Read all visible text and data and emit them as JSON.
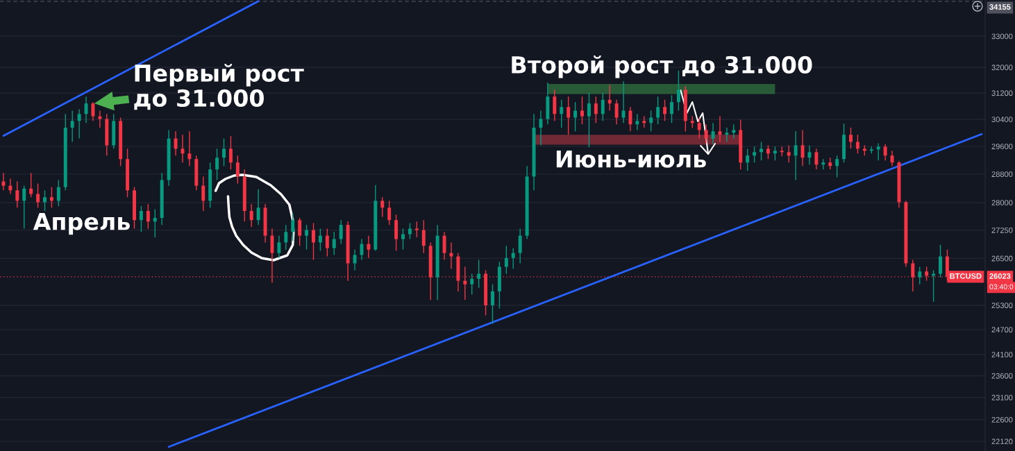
{
  "chart_data": {
    "type": "candlestick",
    "categories": [
      null,
      null,
      null,
      null,
      null,
      null,
      null,
      null,
      null,
      null,
      null,
      null,
      null,
      null,
      null,
      null,
      null,
      null,
      null,
      null,
      null,
      null,
      null,
      null,
      null,
      null,
      null,
      null,
      null,
      null,
      null,
      null,
      null,
      null,
      null,
      null,
      null,
      null,
      null,
      null,
      null,
      null,
      null,
      null,
      null,
      null,
      null,
      null,
      null,
      null,
      null,
      null,
      null,
      null,
      null,
      null,
      null,
      null,
      null,
      null,
      null,
      null,
      null,
      null,
      null,
      null,
      null,
      null,
      null,
      null,
      null,
      null,
      null,
      null,
      null,
      null,
      null,
      null,
      null,
      null,
      null,
      null,
      null,
      null,
      null,
      null,
      null,
      null,
      null,
      null,
      null,
      null,
      null,
      null,
      null,
      null,
      null,
      null,
      null,
      null,
      null,
      null,
      null,
      null,
      null,
      null,
      null,
      null,
      null,
      null,
      null,
      null,
      null,
      null,
      null,
      null,
      null,
      null,
      null,
      null,
      null,
      null,
      null,
      null,
      null,
      null,
      null,
      null,
      null,
      null,
      null,
      null,
      null,
      null,
      null,
      null,
      null,
      null,
      null,
      null,
      null,
      null,
      null
    ],
    "series": [
      {
        "type": "line",
        "color": "#2e6b3f",
        "values": [
          null,
          null,
          null,
          null,
          null,
          null,
          null,
          null,
          null,
          null,
          null,
          null,
          null,
          null,
          null,
          null,
          null,
          null,
          null,
          null,
          null,
          null,
          null,
          null,
          null,
          null,
          null,
          null,
          null,
          null,
          null,
          null,
          null,
          null,
          null,
          null,
          null,
          null,
          null,
          null,
          null,
          null,
          null,
          null,
          null,
          null,
          null,
          null,
          null,
          null,
          null,
          null,
          null,
          null,
          null,
          null,
          null,
          null,
          null,
          null,
          null,
          null,
          null,
          null,
          null,
          null,
          null,
          null,
          null,
          null,
          null,
          null,
          null,
          null,
          null,
          null,
          null,
          null,
          null,
          null,
          null,
          null,
          null,
          null,
          null,
          null,
          null,
          null,
          null,
          null,
          null,
          null,
          null,
          null,
          null,
          null,
          null,
          null,
          null,
          null,
          null,
          null,
          null,
          null,
          null,
          null,
          null,
          null,
          null,
          null,
          null,
          null,
          null,
          null,
          null,
          null,
          null,
          null,
          null,
          null,
          null,
          null,
          null,
          null,
          null,
          null,
          null,
          null,
          null,
          null,
          null,
          null,
          null,
          null,
          null,
          null,
          null,
          null,
          null,
          null,
          null,
          null,
          null
        ],
        "upper": [
          null,
          null,
          null,
          null,
          null,
          null,
          null,
          null,
          null,
          null,
          null,
          null,
          null,
          null,
          null,
          null,
          null,
          null,
          null,
          null,
          null,
          null,
          null,
          null,
          null,
          null,
          null,
          null,
          null,
          null,
          null,
          null,
          null,
          null,
          null,
          null,
          null,
          null,
          null,
          null,
          null,
          null,
          null,
          null,
          null,
          null,
          null,
          null,
          null,
          null,
          null,
          null,
          null,
          null,
          null,
          null,
          null,
          null,
          null,
          null,
          null,
          null,
          null,
          null,
          null,
          null,
          null,
          null,
          null,
          null,
          null,
          null,
          null,
          null,
          null,
          null,
          null,
          null,
          null,
          31480,
          31480,
          31480,
          31480,
          31480,
          31480,
          31480,
          31480,
          31480,
          31480,
          31480,
          31480,
          31480,
          31480,
          31480,
          31480,
          31480,
          31480,
          31480,
          31480,
          31480,
          31480,
          31480,
          31480,
          31480,
          31480,
          31480,
          31480,
          31480,
          31480,
          31480,
          31480,
          31480,
          31480,
          null,
          null,
          null,
          null,
          null,
          null,
          null,
          null,
          null,
          null,
          null,
          null,
          null,
          null,
          null,
          null,
          null,
          null,
          null,
          null,
          null,
          null,
          null,
          null,
          null,
          null,
          null,
          null,
          null,
          null
        ],
        "lower": [
          null,
          null,
          null,
          null,
          null,
          null,
          null,
          null,
          null,
          null,
          null,
          null,
          null,
          null,
          null,
          null,
          null,
          null,
          null,
          null,
          null,
          null,
          null,
          null,
          null,
          null,
          null,
          null,
          null,
          null,
          null,
          null,
          null,
          null,
          null,
          null,
          null,
          null,
          null,
          null,
          null,
          null,
          null,
          null,
          null,
          null,
          null,
          null,
          null,
          null,
          null,
          null,
          null,
          null,
          null,
          null,
          null,
          null,
          null,
          null,
          null,
          null,
          null,
          null,
          null,
          null,
          null,
          null,
          null,
          null,
          null,
          null,
          null,
          null,
          null,
          null,
          null,
          null,
          null,
          31170,
          31170,
          31170,
          31170,
          31170,
          31170,
          31170,
          31170,
          31170,
          31170,
          31170,
          31170,
          31170,
          31170,
          31170,
          31170,
          31170,
          31170,
          31170,
          31170,
          31170,
          31170,
          31170,
          31170,
          31170,
          31170,
          31170,
          31170,
          31170,
          31170,
          31170,
          31170,
          31170,
          31170,
          null,
          null,
          null,
          null,
          null,
          null,
          null,
          null,
          null,
          null,
          null,
          null,
          null,
          null,
          null,
          null,
          null,
          null,
          null,
          null,
          null,
          null,
          null,
          null,
          null,
          null,
          null,
          null,
          null,
          null
        ]
      },
      {
        "type": "line",
        "color": "#8a2f3b",
        "values": [
          null,
          null,
          null,
          null,
          null,
          null,
          null,
          null,
          null,
          null,
          null,
          null,
          null,
          null,
          null,
          null,
          null,
          null,
          null,
          null,
          null,
          null,
          null,
          null,
          null,
          null,
          null,
          null,
          null,
          null,
          null,
          null,
          null,
          null,
          null,
          null,
          null,
          null,
          null,
          null,
          null,
          null,
          null,
          null,
          null,
          null,
          null,
          null,
          null,
          null,
          null,
          null,
          null,
          null,
          null,
          null,
          null,
          null,
          null,
          null,
          null,
          null,
          null,
          null,
          null,
          null,
          null,
          null,
          null,
          null,
          null,
          null,
          null,
          null,
          null,
          null,
          null,
          null,
          null,
          null,
          null,
          null,
          null,
          null,
          null,
          null,
          null,
          null,
          null,
          null,
          null,
          null,
          null,
          null,
          null,
          null,
          null,
          null,
          null,
          null,
          null,
          null,
          null,
          null,
          null,
          null,
          null,
          null,
          null,
          null,
          null,
          null,
          null,
          null,
          null,
          null,
          null,
          null,
          null,
          null,
          null,
          null,
          null,
          null,
          null,
          null,
          null,
          null,
          null,
          null,
          null,
          null,
          null,
          null,
          null,
          null,
          null,
          null,
          null,
          null,
          null,
          null,
          null
        ],
        "upper": [
          null,
          null,
          null,
          null,
          null,
          null,
          null,
          null,
          null,
          null,
          null,
          null,
          null,
          null,
          null,
          null,
          null,
          null,
          null,
          null,
          null,
          null,
          null,
          null,
          null,
          null,
          null,
          null,
          null,
          null,
          null,
          null,
          null,
          null,
          null,
          null,
          null,
          null,
          null,
          null,
          null,
          null,
          null,
          null,
          null,
          null,
          null,
          null,
          null,
          null,
          null,
          null,
          null,
          null,
          null,
          null,
          null,
          null,
          null,
          null,
          null,
          null,
          null,
          null,
          null,
          null,
          null,
          null,
          null,
          null,
          null,
          null,
          null,
          null,
          null,
          null,
          null,
          29940,
          29940,
          29940,
          29940,
          29940,
          29940,
          29940,
          29940,
          29940,
          29940,
          29940,
          29940,
          29940,
          29940,
          29940,
          29940,
          29940,
          29940,
          29940,
          29940,
          29940,
          29940,
          29940,
          29940,
          29940,
          29940,
          29940,
          29940,
          29940,
          29940,
          29940,
          null,
          null,
          null,
          null,
          null,
          null,
          null,
          null,
          null,
          null,
          null,
          null,
          null,
          null,
          null,
          null,
          null,
          null,
          null,
          null,
          null,
          null,
          null,
          null,
          null,
          null,
          null,
          null,
          null,
          null,
          null,
          null,
          null,
          null,
          null
        ],
        "lower": [
          null,
          null,
          null,
          null,
          null,
          null,
          null,
          null,
          null,
          null,
          null,
          null,
          null,
          null,
          null,
          null,
          null,
          null,
          null,
          null,
          null,
          null,
          null,
          null,
          null,
          null,
          null,
          null,
          null,
          null,
          null,
          null,
          null,
          null,
          null,
          null,
          null,
          null,
          null,
          null,
          null,
          null,
          null,
          null,
          null,
          null,
          null,
          null,
          null,
          null,
          null,
          null,
          null,
          null,
          null,
          null,
          null,
          null,
          null,
          null,
          null,
          null,
          null,
          null,
          null,
          null,
          null,
          null,
          null,
          null,
          null,
          null,
          null,
          null,
          null,
          null,
          null,
          29650,
          29650,
          29650,
          29650,
          29650,
          29650,
          29650,
          29650,
          29650,
          29650,
          29650,
          29650,
          29650,
          29650,
          29650,
          29650,
          29650,
          29650,
          29650,
          29650,
          29650,
          29650,
          29650,
          29650,
          29650,
          29650,
          29650,
          29650,
          29650,
          29650,
          29650,
          null,
          null,
          null,
          null,
          null,
          null,
          null,
          null,
          null,
          null,
          null,
          null,
          null,
          null,
          null,
          null,
          null,
          null,
          null,
          null,
          null,
          null,
          null,
          null,
          null,
          null,
          null,
          null,
          null,
          null,
          null,
          null,
          null,
          null,
          null
        ]
      },
      {
        "ohlc": [
          [
            28590,
            28830,
            28340,
            28470
          ],
          [
            28470,
            28670,
            28240,
            28340
          ],
          [
            28340,
            28590,
            27860,
            28050
          ],
          [
            28050,
            28470,
            27290,
            28390
          ],
          [
            28390,
            28830,
            28150,
            28240
          ],
          [
            28240,
            28530,
            27860,
            28010
          ],
          [
            28010,
            28340,
            27770,
            28150
          ],
          [
            28150,
            28430,
            27860,
            28050
          ],
          [
            28050,
            28630,
            27900,
            28430
          ],
          [
            28430,
            30560,
            28340,
            30150
          ],
          [
            30150,
            30660,
            29730,
            30350
          ],
          [
            30350,
            30700,
            29830,
            30560
          ],
          [
            30560,
            31090,
            30290,
            30880
          ],
          [
            30880,
            30920,
            30350,
            30490
          ],
          [
            30490,
            30660,
            30150,
            30410
          ],
          [
            30410,
            30560,
            29330,
            29630
          ],
          [
            29630,
            30560,
            29530,
            30350
          ],
          [
            30350,
            30450,
            29030,
            29230
          ],
          [
            29230,
            29530,
            28150,
            28340
          ],
          [
            28340,
            28430,
            27290,
            27520
          ],
          [
            27520,
            27900,
            27200,
            27770
          ],
          [
            27770,
            27960,
            27290,
            27480
          ],
          [
            27480,
            27820,
            27050,
            27580
          ],
          [
            27580,
            28830,
            27390,
            28630
          ],
          [
            28630,
            30080,
            28470,
            29830
          ],
          [
            29830,
            30040,
            29330,
            29530
          ],
          [
            29530,
            29940,
            29130,
            29390
          ],
          [
            29390,
            30040,
            29030,
            29230
          ],
          [
            29230,
            29330,
            28340,
            28470
          ],
          [
            28470,
            28730,
            27770,
            28050
          ],
          [
            28050,
            29130,
            27860,
            28930
          ],
          [
            28930,
            29530,
            28630,
            29270
          ],
          [
            29270,
            29830,
            29030,
            29530
          ],
          [
            29530,
            29900,
            28930,
            29130
          ],
          [
            29130,
            29330,
            28530,
            28730
          ],
          [
            28730,
            28930,
            27480,
            27770
          ],
          [
            27770,
            27960,
            27330,
            27520
          ],
          [
            27520,
            28370,
            27390,
            27860
          ],
          [
            27860,
            27960,
            26920,
            27100
          ],
          [
            27100,
            27290,
            25870,
            26640
          ],
          [
            26640,
            27100,
            26510,
            26920
          ],
          [
            26920,
            27390,
            26730,
            27200
          ],
          [
            27200,
            27710,
            26960,
            27520
          ],
          [
            27520,
            27580,
            26830,
            27100
          ],
          [
            27100,
            27390,
            26730,
            27250
          ],
          [
            27250,
            27440,
            26460,
            26920
          ],
          [
            26920,
            27290,
            26700,
            27100
          ],
          [
            27100,
            27290,
            26550,
            26770
          ],
          [
            26770,
            27200,
            26590,
            27010
          ],
          [
            27010,
            27520,
            26880,
            27390
          ],
          [
            27390,
            27480,
            25920,
            26370
          ],
          [
            26370,
            26730,
            26190,
            26590
          ],
          [
            26590,
            27010,
            26460,
            26880
          ],
          [
            26880,
            27100,
            26510,
            26730
          ],
          [
            26730,
            28490,
            26700,
            28050
          ],
          [
            28050,
            28150,
            27610,
            27860
          ],
          [
            27860,
            28050,
            27390,
            27520
          ],
          [
            27520,
            27670,
            26700,
            27010
          ],
          [
            27010,
            27290,
            26730,
            27140
          ],
          [
            27140,
            27440,
            27010,
            27290
          ],
          [
            27290,
            27480,
            27060,
            27250
          ],
          [
            27250,
            27520,
            26640,
            26830
          ],
          [
            26830,
            26920,
            25430,
            26010
          ],
          [
            26010,
            27390,
            25430,
            27100
          ],
          [
            27100,
            27200,
            26460,
            26640
          ],
          [
            26640,
            26920,
            26230,
            26550
          ],
          [
            26550,
            26640,
            25650,
            25920
          ],
          [
            25920,
            26280,
            25440,
            25830
          ],
          [
            25830,
            26100,
            25570,
            25970
          ],
          [
            25970,
            26460,
            25740,
            26100
          ],
          [
            26100,
            26190,
            25050,
            25300
          ],
          [
            25300,
            25830,
            24840,
            25650
          ],
          [
            25650,
            26410,
            25220,
            26280
          ],
          [
            26280,
            26830,
            26100,
            26510
          ],
          [
            26510,
            26770,
            26230,
            26640
          ],
          [
            26640,
            27290,
            26370,
            27100
          ],
          [
            27100,
            29030,
            27010,
            28730
          ],
          [
            28730,
            30560,
            28340,
            30150
          ],
          [
            30150,
            30660,
            29630,
            30410
          ],
          [
            30410,
            31520,
            30250,
            31090
          ],
          [
            31090,
            31300,
            30350,
            30560
          ],
          [
            30560,
            30990,
            30150,
            30770
          ],
          [
            30770,
            31090,
            29940,
            30450
          ],
          [
            30450,
            30920,
            30040,
            30660
          ],
          [
            30660,
            31090,
            30250,
            30490
          ],
          [
            30490,
            31200,
            29570,
            30880
          ],
          [
            30880,
            31090,
            30290,
            30560
          ],
          [
            30560,
            31200,
            30350,
            30990
          ],
          [
            30990,
            31450,
            30660,
            30880
          ],
          [
            30880,
            30990,
            30250,
            30450
          ],
          [
            30450,
            31560,
            30290,
            30660
          ],
          [
            30660,
            30770,
            30040,
            30250
          ],
          [
            30250,
            30560,
            30080,
            30350
          ],
          [
            30350,
            30490,
            30150,
            30290
          ],
          [
            30290,
            30660,
            30040,
            30450
          ],
          [
            30450,
            31090,
            30250,
            30770
          ],
          [
            30770,
            30990,
            30350,
            30560
          ],
          [
            30560,
            31130,
            30290,
            30920
          ],
          [
            30920,
            31890,
            30660,
            31300
          ],
          [
            31300,
            31410,
            30040,
            30350
          ],
          [
            30350,
            30490,
            30150,
            30290
          ],
          [
            30290,
            30450,
            29830,
            30080
          ],
          [
            30080,
            30250,
            29690,
            29830
          ],
          [
            29830,
            30290,
            29670,
            30040
          ],
          [
            30040,
            30490,
            29730,
            29940
          ],
          [
            29940,
            30150,
            29730,
            30000
          ],
          [
            30000,
            30250,
            29830,
            30080
          ],
          [
            30080,
            30390,
            28930,
            29130
          ],
          [
            29130,
            29530,
            28890,
            29330
          ],
          [
            29330,
            29590,
            29130,
            29430
          ],
          [
            29430,
            29730,
            29190,
            29530
          ],
          [
            29530,
            29630,
            29230,
            29390
          ],
          [
            29390,
            29590,
            29190,
            29470
          ],
          [
            29470,
            29590,
            29310,
            29430
          ],
          [
            29430,
            29630,
            29130,
            29330
          ],
          [
            29330,
            30040,
            28630,
            29630
          ],
          [
            29630,
            30080,
            29030,
            29270
          ],
          [
            29270,
            29630,
            29070,
            29430
          ],
          [
            29430,
            29530,
            28930,
            29070
          ],
          [
            29070,
            29230,
            28930,
            29130
          ],
          [
            29130,
            29270,
            28930,
            29030
          ],
          [
            29030,
            29330,
            28710,
            29230
          ],
          [
            29230,
            30270,
            29130,
            29940
          ],
          [
            29940,
            30150,
            29530,
            29730
          ],
          [
            29730,
            29940,
            29390,
            29530
          ],
          [
            29530,
            29630,
            29330,
            29470
          ],
          [
            29470,
            29590,
            29390,
            29510
          ],
          [
            29510,
            29690,
            29190,
            29590
          ],
          [
            29590,
            29670,
            29190,
            29330
          ],
          [
            29330,
            29470,
            29030,
            29130
          ],
          [
            29130,
            29170,
            27860,
            28010
          ],
          [
            28010,
            28050,
            26280,
            26370
          ],
          [
            26370,
            26460,
            25650,
            26010
          ],
          [
            26010,
            26280,
            25830,
            26160
          ],
          [
            26160,
            26280,
            25920,
            26050
          ],
          [
            26050,
            26190,
            25390,
            26100
          ],
          [
            26100,
            26860,
            26010,
            26550
          ],
          [
            26550,
            26730,
            25920,
            26023
          ],
          null,
          null,
          null,
          null,
          null
        ],
        "colors": [
          "#f23645",
          "#f23645",
          "#f23645",
          "#089981",
          "#f23645",
          "#f23645",
          "#089981",
          "#f23645",
          "#089981",
          "#089981",
          "#089981",
          "#089981",
          "#089981",
          "#f23645",
          "#f23645",
          "#f23645",
          "#089981",
          "#f23645",
          "#f23645",
          "#f23645",
          "#089981",
          "#f23645",
          "#089981",
          "#089981",
          "#089981",
          "#f23645",
          "#f23645",
          "#f23645",
          "#f23645",
          "#f23645",
          "#089981",
          "#089981",
          "#089981",
          "#f23645",
          "#f23645",
          "#f23645",
          "#f23645",
          "#089981",
          "#f23645",
          "#f23645",
          "#089981",
          "#089981",
          "#089981",
          "#f23645",
          "#089981",
          "#f23645",
          "#089981",
          "#f23645",
          "#089981",
          "#089981",
          "#f23645",
          "#089981",
          "#089981",
          "#f23645",
          "#089981",
          "#f23645",
          "#f23645",
          "#f23645",
          "#089981",
          "#089981",
          "#f23645",
          "#f23645",
          "#f23645",
          "#089981",
          "#f23645",
          "#f23645",
          "#f23645",
          "#f23645",
          "#089981",
          "#089981",
          "#f23645",
          "#089981",
          "#089981",
          "#089981",
          "#089981",
          "#089981",
          "#089981",
          "#089981",
          "#089981",
          "#089981",
          "#f23645",
          "#089981",
          "#f23645",
          "#089981",
          "#f23645",
          "#089981",
          "#f23645",
          "#089981",
          "#f23645",
          "#f23645",
          "#089981",
          "#f23645",
          "#089981",
          "#f23645",
          "#089981",
          "#089981",
          "#f23645",
          "#089981",
          "#089981",
          "#f23645",
          "#f23645",
          "#f23645",
          "#f23645",
          "#089981",
          "#f23645",
          "#089981",
          "#089981",
          "#f23645",
          "#089981",
          "#089981",
          "#089981",
          "#f23645",
          "#089981",
          "#f23645",
          "#f23645",
          "#089981",
          "#f23645",
          "#089981",
          "#f23645",
          "#089981",
          "#f23645",
          "#089981",
          "#089981",
          "#f23645",
          "#f23645",
          "#f23645",
          "#089981",
          "#089981",
          "#f23645",
          "#f23645",
          "#f23645",
          "#f23645",
          "#f23645",
          "#089981",
          "#f23645",
          "#089981",
          "#089981",
          "#f23645",
          null,
          null,
          null,
          null,
          null
        ]
      },
      {
        "type": "line",
        "color": "#2962ff",
        "values": [
          29910,
          null,
          null,
          null,
          null,
          null,
          null,
          null,
          null,
          null,
          null,
          null,
          null,
          null,
          null,
          null,
          null,
          null,
          null,
          null,
          null,
          null,
          null,
          null,
          null,
          null,
          null,
          null,
          null,
          null,
          null,
          null,
          null,
          null,
          null,
          null,
          null,
          34160,
          null,
          null,
          null,
          null,
          null,
          null,
          null,
          null,
          null,
          null,
          null,
          null,
          null,
          null,
          null,
          null,
          null,
          null,
          null,
          null,
          null,
          null,
          null,
          null,
          null,
          null,
          null,
          null,
          null,
          null,
          null,
          null,
          null,
          null,
          null,
          null,
          null,
          null,
          null,
          null,
          null,
          null,
          null,
          null,
          null,
          null,
          null,
          null,
          null,
          null,
          null,
          null,
          null,
          null,
          null,
          null,
          null,
          null,
          null,
          null,
          null,
          null,
          null,
          null,
          null,
          null,
          null,
          null,
          null,
          null,
          null,
          null,
          null,
          null,
          null,
          null,
          null,
          null,
          null,
          null,
          null,
          null,
          null,
          null,
          null,
          null,
          null,
          null,
          null,
          null,
          null,
          null,
          null,
          null,
          null,
          null,
          null,
          null,
          null,
          null,
          null,
          null,
          null,
          null,
          null
        ]
      },
      {
        "type": "line",
        "color": "#2962ff",
        "values": [
          null,
          null,
          null,
          null,
          null,
          null,
          null,
          null,
          null,
          null,
          null,
          null,
          null,
          null,
          null,
          null,
          null,
          null,
          null,
          null,
          null,
          null,
          null,
          null,
          22000,
          null,
          null,
          null,
          null,
          null,
          null,
          null,
          null,
          null,
          null,
          null,
          null,
          null,
          null,
          null,
          null,
          null,
          null,
          null,
          null,
          null,
          null,
          null,
          null,
          null,
          null,
          null,
          null,
          null,
          null,
          null,
          null,
          null,
          null,
          null,
          null,
          null,
          null,
          null,
          null,
          null,
          null,
          null,
          null,
          null,
          null,
          null,
          null,
          null,
          null,
          null,
          null,
          null,
          null,
          null,
          null,
          null,
          null,
          null,
          null,
          null,
          null,
          null,
          null,
          null,
          null,
          null,
          null,
          null,
          null,
          null,
          null,
          null,
          null,
          null,
          null,
          null,
          null,
          null,
          null,
          null,
          null,
          null,
          null,
          null,
          null,
          null,
          null,
          null,
          null,
          null,
          null,
          null,
          null,
          null,
          null,
          null,
          null,
          null,
          null,
          null,
          null,
          null,
          null,
          null,
          null,
          null,
          null,
          null,
          null,
          null,
          null,
          null,
          null,
          null,
          null,
          null,
          29960
        ]
      }
    ],
    "ylim": [
      21910,
      34200
    ],
    "yticks": [
      22120,
      22600,
      23100,
      23600,
      24100,
      24700,
      25300,
      26500,
      27250,
      28000,
      28800,
      29600,
      30400,
      31200,
      32000,
      33000
    ],
    "log": true,
    "grid": "y",
    "tick_labels": "y",
    "ref_lines": [
      {
        "axis": "y",
        "value": 26023,
        "label": "26023",
        "color": "#f23645",
        "line_style": "dotted"
      },
      {
        "axis": "y",
        "value": 34155,
        "label": "34155",
        "color": "#50535e",
        "line_style": "dashed"
      }
    ],
    "annotations": [
      "Первый рост\nдо 31.000",
      "Апрель",
      "Второй рост до 31.000",
      "Июнь-июль",
      {
        "text": "BTCUSD",
        "y": 26023
      },
      "03:40:0"
    ]
  }
}
